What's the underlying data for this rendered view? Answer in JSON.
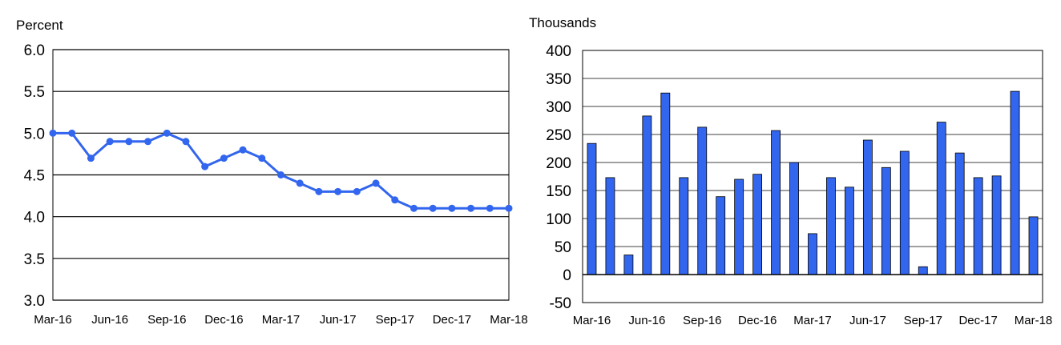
{
  "chart_data": [
    {
      "type": "line",
      "ylabel": "Percent",
      "ylim": [
        3.0,
        6.0
      ],
      "y_ticks": [
        "3.0",
        "3.5",
        "4.0",
        "4.5",
        "5.0",
        "5.5",
        "6.0"
      ],
      "x_tick_labels": [
        "Mar-16",
        "Jun-16",
        "Sep-16",
        "Dec-16",
        "Mar-17",
        "Jun-17",
        "Sep-17",
        "Dec-17",
        "Mar-18"
      ],
      "x": [
        "Mar-16",
        "Apr-16",
        "May-16",
        "Jun-16",
        "Jul-16",
        "Aug-16",
        "Sep-16",
        "Oct-16",
        "Nov-16",
        "Dec-16",
        "Jan-17",
        "Feb-17",
        "Mar-17",
        "Apr-17",
        "May-17",
        "Jun-17",
        "Jul-17",
        "Aug-17",
        "Sep-17",
        "Oct-17",
        "Nov-17",
        "Dec-17",
        "Jan-18",
        "Feb-18",
        "Mar-18"
      ],
      "values": [
        5.0,
        5.0,
        4.7,
        4.9,
        4.9,
        4.9,
        5.0,
        4.9,
        4.6,
        4.7,
        4.8,
        4.7,
        4.5,
        4.4,
        4.3,
        4.3,
        4.3,
        4.4,
        4.2,
        4.1,
        4.1,
        4.1,
        4.1,
        4.1,
        4.1
      ],
      "color": "#3366ee",
      "grid": "horizontal"
    },
    {
      "type": "bar",
      "ylabel": "Thousands",
      "ylim": [
        -50,
        400
      ],
      "y_ticks": [
        "-50",
        "0",
        "50",
        "100",
        "150",
        "200",
        "250",
        "300",
        "350",
        "400"
      ],
      "x_tick_labels": [
        "Mar-16",
        "Jun-16",
        "Sep-16",
        "Dec-16",
        "Mar-17",
        "Jun-17",
        "Sep-17",
        "Dec-17",
        "Mar-18"
      ],
      "categories": [
        "Mar-16",
        "Apr-16",
        "May-16",
        "Jun-16",
        "Jul-16",
        "Aug-16",
        "Sep-16",
        "Oct-16",
        "Nov-16",
        "Dec-16",
        "Jan-17",
        "Feb-17",
        "Mar-17",
        "Apr-17",
        "May-17",
        "Jun-17",
        "Jul-17",
        "Aug-17",
        "Sep-17",
        "Oct-17",
        "Nov-17",
        "Dec-17",
        "Jan-18",
        "Feb-18",
        "Mar-18"
      ],
      "values": [
        234,
        173,
        35,
        283,
        324,
        173,
        263,
        139,
        170,
        179,
        257,
        200,
        73,
        173,
        156,
        240,
        191,
        220,
        14,
        272,
        217,
        173,
        176,
        327,
        103
      ],
      "color": "#3366ee",
      "grid": "horizontal"
    }
  ]
}
